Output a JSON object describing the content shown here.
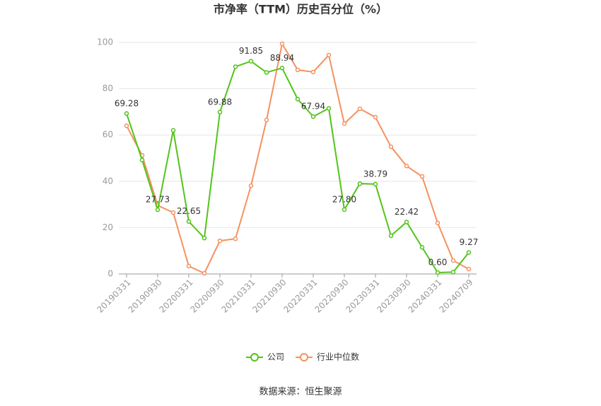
{
  "chart_data": {
    "type": "line",
    "title": "市净率（TTM）历史百分位（%）",
    "source": "数据来源：恒生聚源",
    "categories": [
      "20190331",
      null,
      "20190930",
      null,
      "20200331",
      null,
      "20200930",
      null,
      "20210331",
      null,
      "20210930",
      null,
      "20220331",
      null,
      "20220930",
      null,
      "20230331",
      null,
      "20230930",
      null,
      "20240331",
      null,
      "20240709"
    ],
    "series": [
      {
        "name": "公司",
        "color": "#52c41a",
        "values": [
          69.28,
          49.2,
          27.73,
          62,
          22.65,
          15.5,
          69.88,
          89.5,
          91.85,
          87,
          88.94,
          75.5,
          67.94,
          71.5,
          27.8,
          39,
          38.79,
          16.5,
          22.42,
          11.5,
          0.6,
          0.8,
          9.27
        ],
        "value_labels": [
          "69.28",
          null,
          "27.73",
          null,
          "22.65",
          null,
          "69.88",
          null,
          "91.85",
          null,
          "88.94",
          null,
          "67.94",
          null,
          "27.80",
          null,
          "38.79",
          null,
          "22.42",
          null,
          "0.60",
          null,
          "9.27"
        ]
      },
      {
        "name": "行业中位数",
        "color": "#f5915f",
        "values": [
          64,
          51.2,
          29.6,
          26.5,
          3.4,
          0.3,
          14.3,
          15.2,
          38.1,
          66.5,
          99.4,
          88.1,
          87.2,
          94.5,
          64.9,
          71.3,
          67.7,
          54.9,
          46.6,
          42.1,
          22,
          5.8,
          2.1
        ]
      }
    ],
    "ylim": [
      0,
      100
    ],
    "yticks": [
      0,
      20,
      40,
      60,
      80,
      100
    ],
    "grid": true,
    "legend": "bottom"
  }
}
